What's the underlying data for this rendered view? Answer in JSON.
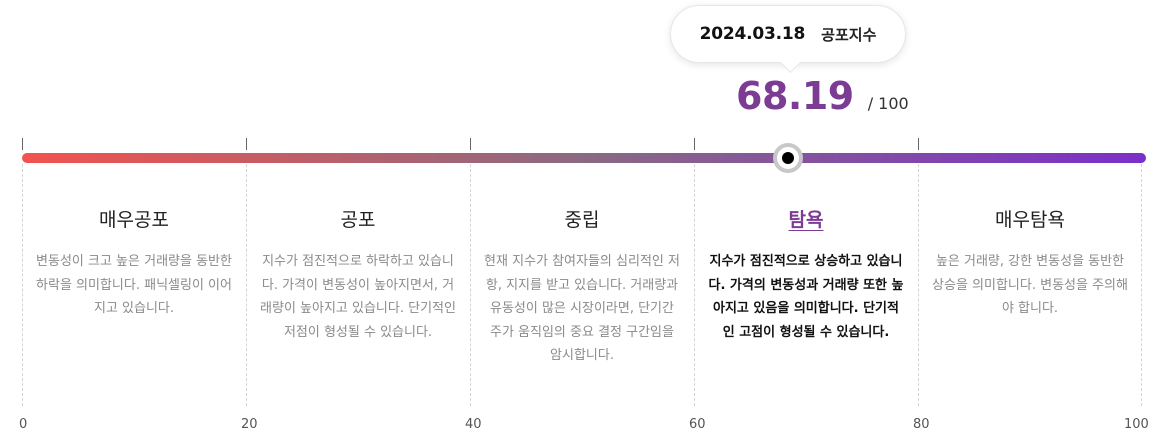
{
  "tooltip": {
    "date": "2024.03.18",
    "label": "공포지수"
  },
  "score": {
    "value": 68.19,
    "value_text": "68.19",
    "max_text": "/ 100"
  },
  "colors": {
    "gradient_start": "#f2534f",
    "gradient_mid": "#8a6a82",
    "gradient_end": "#7b2fc9",
    "accent": "#7c3c94",
    "marker_ring": "#c8c8c8"
  },
  "scale": {
    "min": 0,
    "max": 100
  },
  "axis_labels": [
    "0",
    "20",
    "40",
    "60",
    "80",
    "100"
  ],
  "zones": [
    {
      "title": "매우공포",
      "description": "변동성이 크고 높은 거래량을 동반한 하락을 의미합니다. 패닉셀링이 이어지고 있습니다.",
      "active": false
    },
    {
      "title": "공포",
      "description": "지수가 점진적으로 하락하고 있습니다. 가격이 변동성이 높아지면서, 거래량이 높아지고 있습니다. 단기적인 저점이 형성될 수 있습니다.",
      "active": false
    },
    {
      "title": "중립",
      "description": "현재 지수가 참여자들의 심리적인 저항, 지지를 받고 있습니다. 거래량과 유동성이 많은 시장이라면, 단기간 주가 움직임의 중요 결정 구간임을 암시합니다.",
      "active": false
    },
    {
      "title": "탐욕",
      "description": "지수가 점진적으로 상승하고 있습니다. 가격의 변동성과 거래량 또한 높아지고 있음을 의미합니다. 단기적인 고점이 형성될 수 있습니다.",
      "active": true
    },
    {
      "title": "매우탐욕",
      "description": "높은 거래량, 강한 변동성을 동반한 상승을 의미합니다. 변동성을 주의해야 합니다.",
      "active": false
    }
  ]
}
